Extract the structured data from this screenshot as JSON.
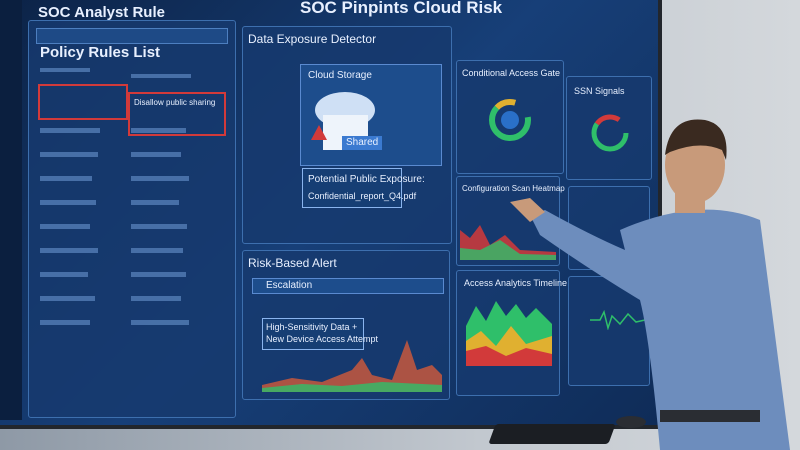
{
  "screen": {
    "title": "SOC Pinpints Cloud Risk",
    "sidebar": {
      "header": "SOC Analyst Rule",
      "list_title": "Policy Rules List",
      "highlighted_rule": "Disallow public sharing"
    },
    "data_exposure": {
      "title": "Data Exposure Detector",
      "storage": "Cloud Storage",
      "tag": "Shared",
      "warning": "Potential Public Exposure:",
      "file": "Confidential_report_Q4.pdf"
    },
    "access_gate": {
      "title": "Conditional Access Gate"
    },
    "ssn": {
      "title": "SSN Signals"
    },
    "heatmap": {
      "title": "Configuration Scan Heatmap"
    },
    "timeline": {
      "title": "Access Analytics Timeline"
    },
    "alert": {
      "title": "Risk-Based Alert",
      "level": "Escalation",
      "message": [
        "High-Sensitivity Data +",
        "New Device Access Attempt"
      ]
    }
  }
}
